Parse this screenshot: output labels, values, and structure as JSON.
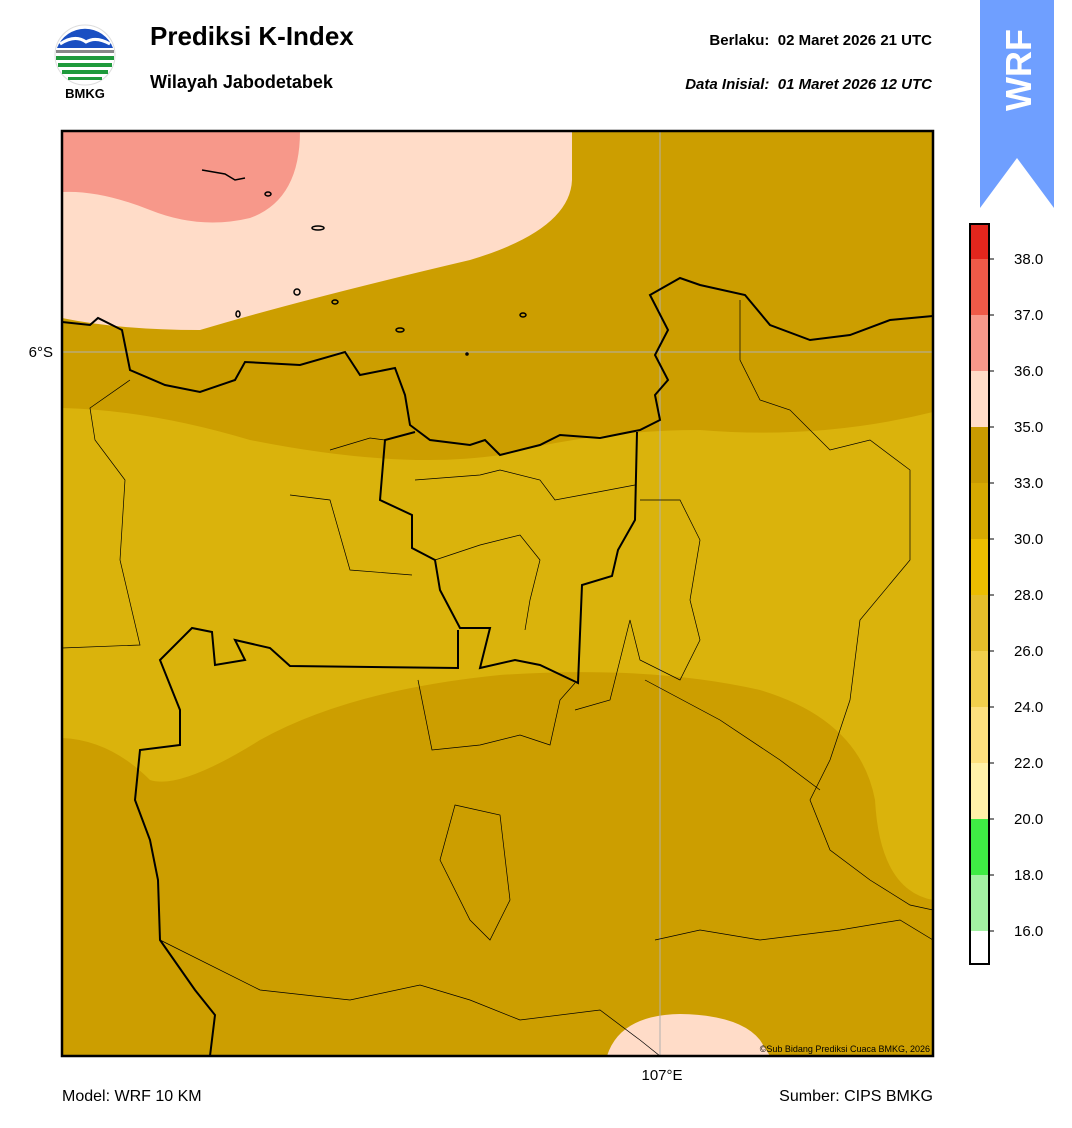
{
  "header": {
    "logo_text": "BMKG",
    "title": "Prediksi K-Index",
    "subtitle": "Wilayah Jabodetabek",
    "valid": "Berlaku:  02 Maret 2026 21 UTC",
    "init": "Data Inisial:  01 Maret 2026 12 UTC",
    "badge": "WRF"
  },
  "map": {
    "lat_label": "6°S",
    "lon_label": "107°E",
    "credit": "©Sub Bidang Prediksi Cuaca BMKG, 2026"
  },
  "colorbar": {
    "labels": [
      "38.0",
      "37.0",
      "36.0",
      "35.0",
      "33.0",
      "30.0",
      "28.0",
      "26.0",
      "24.0",
      "22.0",
      "20.0",
      "18.0",
      "16.0"
    ],
    "colors": [
      "#e3261d",
      "#ef5a48",
      "#f7988a",
      "#ffdcc8",
      "#c99a00",
      "#d6a800",
      "#ebbd00",
      "#e4bd2a",
      "#f2cf4c",
      "#fde07e",
      "#fff1a8",
      "#3fec44",
      "#a2f2a2",
      "#ffffff"
    ]
  },
  "footer": {
    "model": "Model: WRF 10 KM",
    "source": "Sumber: CIPS BMKG"
  }
}
